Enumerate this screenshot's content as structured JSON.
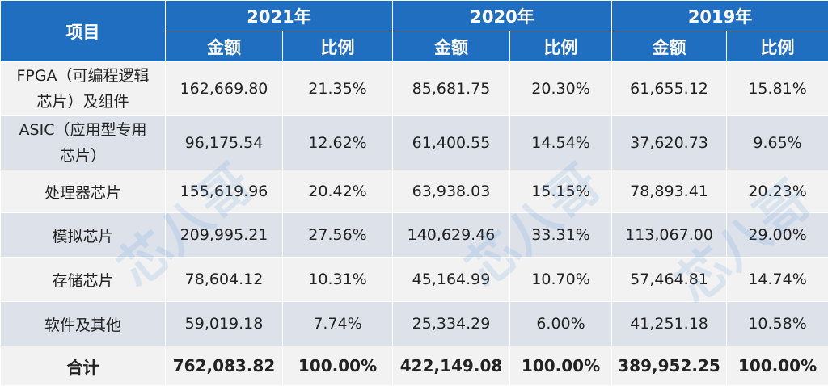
{
  "table": {
    "header_item": "项目",
    "years": [
      "2021年",
      "2020年",
      "2019年"
    ],
    "sub_amount": "金额",
    "sub_ratio": "比例",
    "rows": [
      {
        "label_line1": "FPGA（可编程逻辑",
        "label_line2": "芯片）及组件",
        "cells": [
          "162,669.80",
          "21.35%",
          "85,681.75",
          "20.30%",
          "61,655.12",
          "15.81%"
        ]
      },
      {
        "label_line1": "ASIC（应用型专用",
        "label_line2": "芯片）",
        "cells": [
          "96,175.54",
          "12.62%",
          "61,400.55",
          "14.54%",
          "37,620.73",
          "9.65%"
        ]
      },
      {
        "label_line1": "处理器芯片",
        "label_line2": "",
        "cells": [
          "155,619.96",
          "20.42%",
          "63,938.03",
          "15.15%",
          "78,893.41",
          "20.23%"
        ]
      },
      {
        "label_line1": "模拟芯片",
        "label_line2": "",
        "cells": [
          "209,995.21",
          "27.56%",
          "140,629.46",
          "33.31%",
          "113,067.00",
          "29.00%"
        ]
      },
      {
        "label_line1": "存储芯片",
        "label_line2": "",
        "cells": [
          "78,604.12",
          "10.31%",
          "45,164.99",
          "10.70%",
          "57,464.81",
          "14.74%"
        ]
      },
      {
        "label_line1": "软件及其他",
        "label_line2": "",
        "cells": [
          "59,019.18",
          "7.74%",
          "25,334.29",
          "6.00%",
          "41,251.18",
          "10.58%"
        ]
      }
    ],
    "total": {
      "label": "合计",
      "cells": [
        "762,083.82",
        "100.00%",
        "422,149.08",
        "100.00%",
        "389,952.25",
        "100.00%"
      ]
    }
  },
  "watermark": {
    "text": "芯八哥",
    "color": "#5096dc"
  }
}
